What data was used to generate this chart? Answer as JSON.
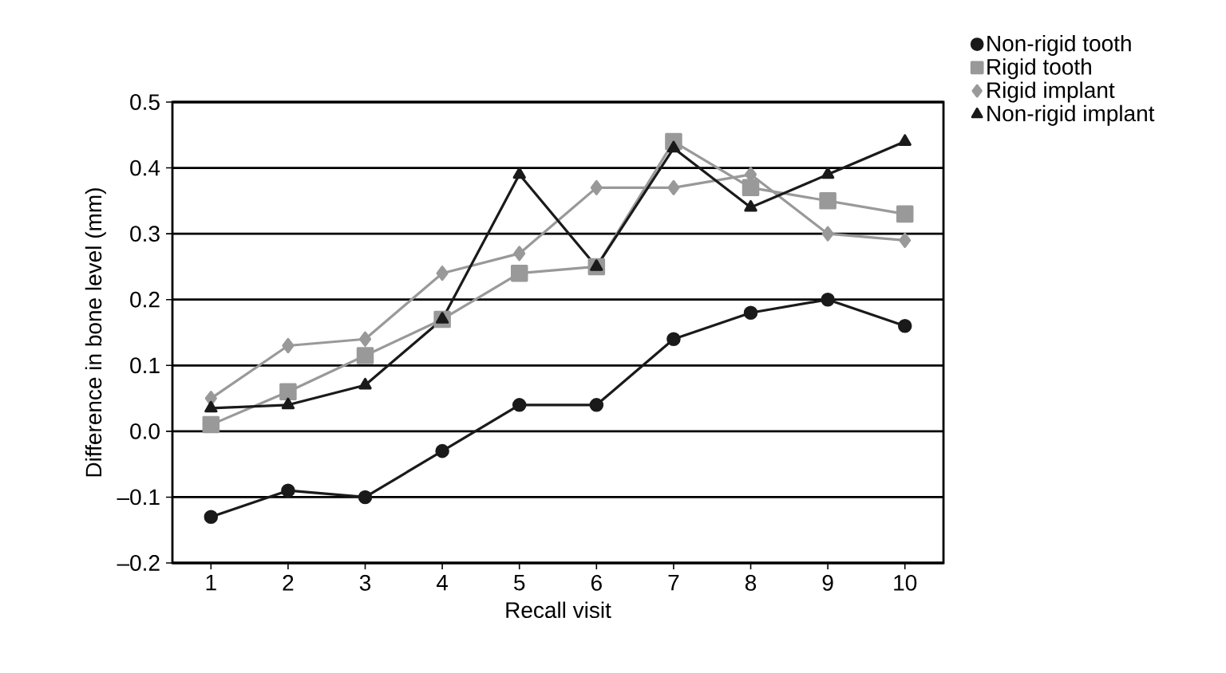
{
  "chart_data": {
    "type": "line",
    "xlabel": "Recall visit",
    "ylabel": "Difference in bone level (mm)",
    "categories": [
      "1",
      "2",
      "3",
      "4",
      "5",
      "6",
      "7",
      "8",
      "9",
      "10"
    ],
    "series": [
      {
        "name": "Non-rigid tooth",
        "color": "#1a1a1a",
        "marker": "circle",
        "values": [
          -0.13,
          -0.09,
          -0.1,
          -0.03,
          0.04,
          0.04,
          0.14,
          0.18,
          0.2,
          0.16
        ]
      },
      {
        "name": "Rigid tooth",
        "color": "#999999",
        "marker": "square",
        "values": [
          0.01,
          0.06,
          0.115,
          0.17,
          0.24,
          0.25,
          0.44,
          0.37,
          0.35,
          0.33
        ]
      },
      {
        "name": "Rigid implant",
        "color": "#999999",
        "marker": "diamond",
        "values": [
          0.05,
          0.13,
          0.14,
          0.24,
          0.27,
          0.37,
          0.37,
          0.39,
          0.3,
          0.29
        ]
      },
      {
        "name": "Non-rigid implant",
        "color": "#1a1a1a",
        "marker": "triangle",
        "values": [
          0.035,
          0.04,
          0.07,
          0.17,
          0.39,
          0.25,
          0.43,
          0.34,
          0.39,
          0.44
        ]
      }
    ],
    "ylim": [
      -0.2,
      0.5
    ],
    "yticks": [
      {
        "value": -0.2,
        "label": "–0.2"
      },
      {
        "value": -0.1,
        "label": "–0.1"
      },
      {
        "value": 0.0,
        "label": "0.0"
      },
      0.1,
      0.2,
      0.3,
      0.4,
      0.5
    ],
    "grid": "y",
    "legend": "right",
    "line_style": "solid"
  }
}
